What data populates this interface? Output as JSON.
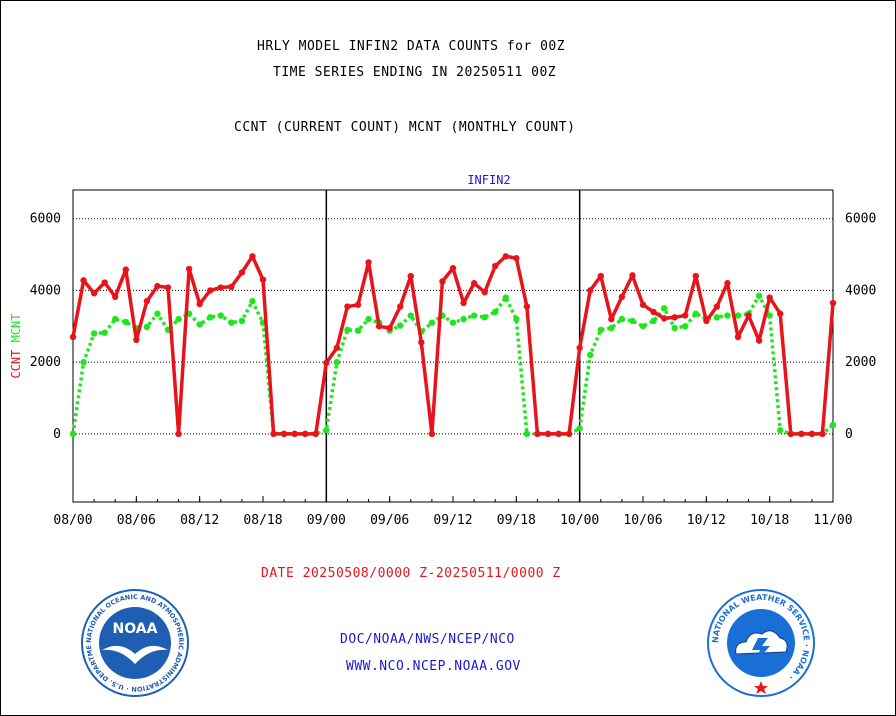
{
  "header": {
    "title_line1": "HRLY MODEL INFIN2 DATA COUNTS for 00Z",
    "title_line2": "TIME SERIES ENDING IN 20250511 00Z",
    "subtitle": "CCNT (CURRENT COUNT) MCNT (MONTHLY COUNT)"
  },
  "footer": {
    "date_range": "DATE 20250508/0000 Z-20250511/0000 Z",
    "org_path": "DOC/NOAA/NWS/NCEP/NCO",
    "website": "WWW.NCO.NCEP.NOAA.GOV",
    "noaa_logo_text": "NOAA",
    "noaa_logo_ring": "NATIONAL OCEANIC AND ATMOSPHERIC ADMINISTRATION · U.S. DEPARTMENT OF COMMERCE ·",
    "nws_logo_ring": "NATIONAL WEATHER SERVICE · NOAA ·"
  },
  "colors": {
    "ccnt": "#e8141b",
    "mcnt": "#1ee61e",
    "panel_label": "#1a1ad6",
    "date_text": "#e8141b",
    "noaa_blue": "#1e5fb3",
    "nws_blue": "#1a6fd6"
  },
  "chart_data": {
    "type": "line",
    "panel_label": "INFIN2",
    "ylabel_ccnt": "CCNT",
    "ylabel_mcnt": "MCNT",
    "ylim": [
      -1900,
      6800
    ],
    "yticks": [
      0,
      2000,
      4000,
      6000
    ],
    "ytick_labels": [
      "0",
      "2000",
      "4000",
      "6000"
    ],
    "xticks": [
      "08/00",
      "08/06",
      "08/12",
      "08/18",
      "09/00",
      "09/06",
      "09/12",
      "09/18",
      "10/00",
      "10/06",
      "10/12",
      "10/18",
      "11/00"
    ],
    "grid": true,
    "series": [
      {
        "name": "CCNT",
        "style": "solid",
        "values": [
          2700,
          4280,
          3920,
          4220,
          3820,
          4580,
          2620,
          3700,
          4120,
          4080,
          0,
          4600,
          3620,
          4000,
          4080,
          4100,
          4500,
          4950,
          4300,
          0,
          0,
          0,
          0,
          0,
          1980,
          2400,
          3550,
          3600,
          4780,
          3000,
          2950,
          3550,
          4400,
          2550,
          0,
          4250,
          4620,
          3650,
          4200,
          3950,
          4680,
          4950,
          4900,
          3550,
          0,
          0,
          0,
          0,
          2400,
          4000,
          4400,
          3200,
          3820,
          4420,
          3600,
          3400,
          3220,
          3250,
          3300,
          4400,
          3150,
          3550,
          4200,
          2700,
          3300,
          2600,
          3800,
          3350,
          0,
          0,
          0,
          0,
          3650
        ]
      },
      {
        "name": "MCNT",
        "style": "dotted",
        "values": [
          0,
          2000,
          2800,
          2820,
          3200,
          3120,
          2950,
          2980,
          3350,
          2900,
          3200,
          3350,
          3050,
          3250,
          3300,
          3100,
          3150,
          3700,
          3100,
          0,
          0,
          0,
          0,
          0,
          100,
          2000,
          2900,
          2880,
          3200,
          3100,
          2880,
          3020,
          3300,
          2850,
          3100,
          3300,
          3100,
          3200,
          3300,
          3250,
          3400,
          3800,
          3200,
          0,
          0,
          0,
          0,
          0,
          150,
          2200,
          2900,
          2950,
          3200,
          3150,
          3000,
          3150,
          3500,
          2950,
          3000,
          3350,
          3200,
          3250,
          3300,
          3300,
          3350,
          3850,
          3300,
          100,
          0,
          0,
          0,
          0,
          250
        ]
      }
    ]
  }
}
